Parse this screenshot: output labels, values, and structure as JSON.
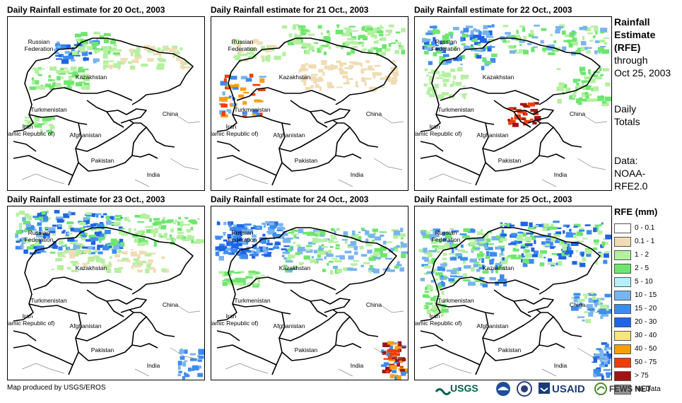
{
  "panels": [
    {
      "title": "Daily Rainfall estimate for 20 Oct., 2003"
    },
    {
      "title": "Daily Rainfall estimate for 21 Oct., 2003"
    },
    {
      "title": "Daily Rainfall estimate for 22 Oct., 2003"
    },
    {
      "title": "Daily Rainfall estimate for 23 Oct., 2003"
    },
    {
      "title": "Daily Rainfall estimate for 24 Oct., 2003"
    },
    {
      "title": "Daily Rainfall estimate for 25 Oct., 2003"
    }
  ],
  "map_labels": {
    "russia": "Russian\nFederation",
    "kazakhstan": "Kazakhstan",
    "turkmenistan": "Turkmenistan",
    "iran": "Iran\n(Islamic Republic of)",
    "afghanistan": "Afghanistan",
    "pakistan": "Pakistan",
    "china": "China",
    "india": "India"
  },
  "side_info": {
    "heading_line1": "Rainfall",
    "heading_line2": "Estimate",
    "heading_line3": "(RFE)",
    "through": "through",
    "date": "Oct 25, 2003",
    "totals_line1": "Daily",
    "totals_line2": "Totals",
    "data_line1": "Data:",
    "data_line2": "NOAA-",
    "data_line3": "RFE2.0"
  },
  "legend": {
    "title": "RFE (mm)",
    "items": [
      {
        "label": "0 - 0.1",
        "color": "#ffffff"
      },
      {
        "label": "0.1 - 1",
        "color": "#f0dcb4"
      },
      {
        "label": "1 - 2",
        "color": "#b4f0a0"
      },
      {
        "label": "2 - 5",
        "color": "#6ee66e"
      },
      {
        "label": "5 - 10",
        "color": "#b4f0f8"
      },
      {
        "label": "10 - 15",
        "color": "#78b4f0"
      },
      {
        "label": "15 - 20",
        "color": "#3c8cf0"
      },
      {
        "label": "20 - 30",
        "color": "#1e64e6"
      },
      {
        "label": "30 - 40",
        "color": "#fae678"
      },
      {
        "label": "40 - 50",
        "color": "#f5a00a"
      },
      {
        "label": "50 - 75",
        "color": "#f03c0a"
      },
      {
        "label": "> 75",
        "color": "#a01414"
      },
      {
        "label": "No Data",
        "color": "#969696"
      }
    ]
  },
  "footer": {
    "credit": "Map produced by USGS/EROS",
    "logos": [
      "USGS",
      "NOAA",
      "DOC",
      "USAID",
      "FEWS NET"
    ]
  }
}
